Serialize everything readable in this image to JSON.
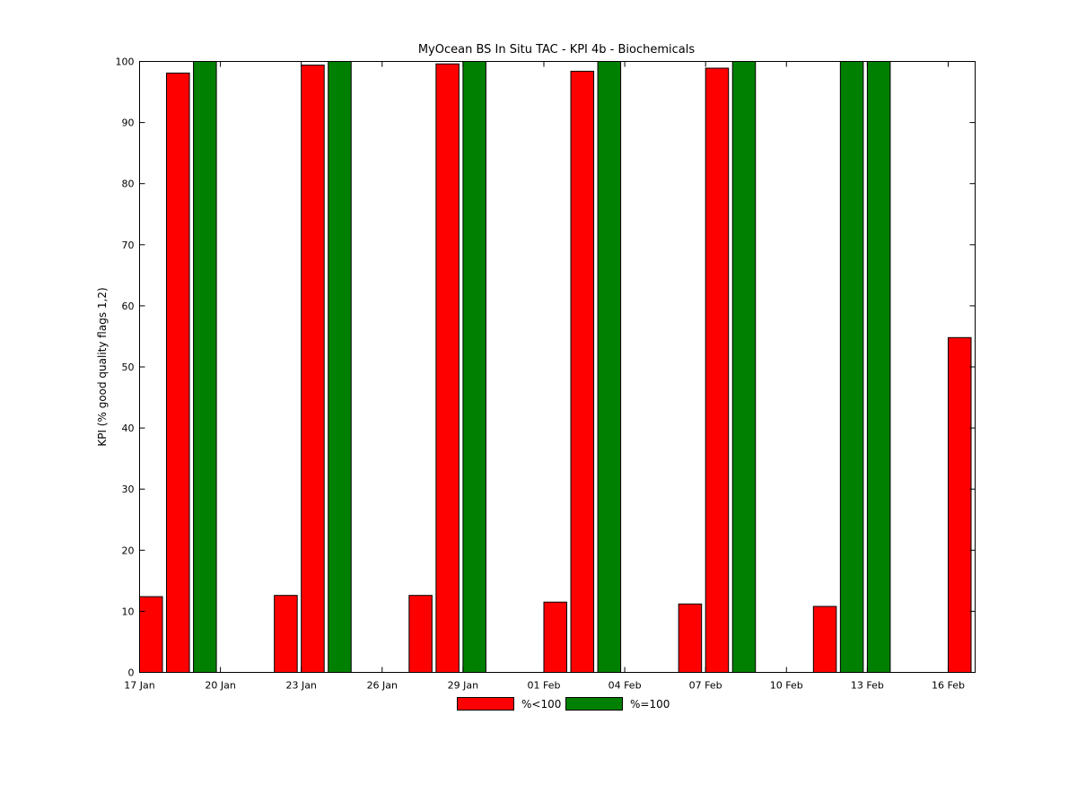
{
  "chart_data": {
    "type": "bar",
    "title": "MyOcean  BS In Situ TAC - KPI 4b - Biochemicals",
    "xlabel": "",
    "ylabel": "KPI (% good quality flags 1,2)",
    "x_axis": {
      "type": "date",
      "year": 2013,
      "range": [
        "2013-01-17",
        "2013-02-17"
      ],
      "ticks": [
        "2013-01-17",
        "2013-01-20",
        "2013-01-23",
        "2013-01-26",
        "2013-01-29",
        "2013-02-01",
        "2013-02-04",
        "2013-02-07",
        "2013-02-10",
        "2013-02-13",
        "2013-02-16"
      ],
      "tick_labels": [
        "17 Jan",
        "20 Jan",
        "23 Jan",
        "26 Jan",
        "29 Jan",
        "01 Feb",
        "04 Feb",
        "07 Feb",
        "10 Feb",
        "13 Feb",
        "16 Feb"
      ]
    },
    "ylim": [
      0,
      100
    ],
    "y_ticks": [
      0,
      10,
      20,
      30,
      40,
      50,
      60,
      70,
      80,
      90,
      100
    ],
    "grid": false,
    "legend": {
      "position": "bottom-center",
      "orientation": "horizontal"
    },
    "series": [
      {
        "name": "%<100",
        "color": "#ff0000",
        "points": [
          {
            "date": "2013-01-17",
            "value": 12.4
          },
          {
            "date": "2013-01-18",
            "value": 98.1
          },
          {
            "date": "2013-01-22",
            "value": 12.6
          },
          {
            "date": "2013-01-23",
            "value": 99.4
          },
          {
            "date": "2013-01-27",
            "value": 12.6
          },
          {
            "date": "2013-01-28",
            "value": 99.6
          },
          {
            "date": "2013-02-01",
            "value": 11.5
          },
          {
            "date": "2013-02-02",
            "value": 98.4
          },
          {
            "date": "2013-02-06",
            "value": 11.2
          },
          {
            "date": "2013-02-07",
            "value": 98.9
          },
          {
            "date": "2013-02-11",
            "value": 10.8
          },
          {
            "date": "2013-02-16",
            "value": 54.8
          }
        ]
      },
      {
        "name": "%=100",
        "color": "#008000",
        "points": [
          {
            "date": "2013-01-19",
            "value": 100
          },
          {
            "date": "2013-01-24",
            "value": 100
          },
          {
            "date": "2013-01-29",
            "value": 100
          },
          {
            "date": "2013-02-03",
            "value": 100
          },
          {
            "date": "2013-02-08",
            "value": 100
          },
          {
            "date": "2013-02-12",
            "value": 100
          },
          {
            "date": "2013-02-13",
            "value": 100
          }
        ]
      }
    ]
  }
}
